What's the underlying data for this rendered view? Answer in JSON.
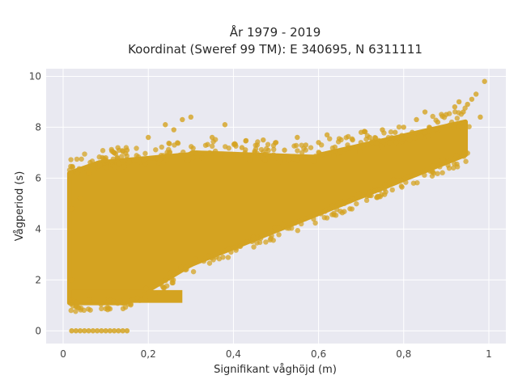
{
  "chart_data": {
    "type": "scatter",
    "title_line1": "År 1979 - 2019",
    "title_line2": "Koordinat (Sweref 99 TM): E 340695, N 6311111",
    "xlabel": "Signifikant våghöjd (m)",
    "ylabel": "Vågperiod (s)",
    "xlim": [
      -0.04,
      1.04
    ],
    "ylim": [
      -0.5,
      10.3
    ],
    "xticks": [
      0,
      0.2,
      0.4,
      0.6,
      0.8,
      1
    ],
    "xtick_labels": [
      "0",
      "0,2",
      "0,4",
      "0,6",
      "0,8",
      "1"
    ],
    "yticks": [
      0,
      2,
      4,
      6,
      8,
      10
    ],
    "ytick_labels": [
      "0",
      "2",
      "4",
      "6",
      "8",
      "10"
    ],
    "grid": true,
    "marker_color": "#d4a321",
    "plot_background": "#e9e9f1",
    "points": [
      [
        0.99,
        9.8
      ],
      [
        0.97,
        9.3
      ],
      [
        0.96,
        9.1
      ],
      [
        0.95,
        8.9
      ],
      [
        0.98,
        8.4
      ],
      [
        0.93,
        9.0
      ],
      [
        0.94,
        8.6
      ],
      [
        0.92,
        8.8
      ],
      [
        0.9,
        8.5
      ],
      [
        0.88,
        8.2
      ],
      [
        0.85,
        8.6
      ],
      [
        0.86,
        8.0
      ],
      [
        0.83,
        8.3
      ],
      [
        0.8,
        8.0
      ],
      [
        0.82,
        7.8
      ],
      [
        0.78,
        7.8
      ],
      [
        0.75,
        7.9
      ],
      [
        0.72,
        7.6
      ],
      [
        0.7,
        7.8
      ],
      [
        0.68,
        7.5
      ],
      [
        0.62,
        7.7
      ],
      [
        0.6,
        7.4
      ],
      [
        0.57,
        7.3
      ],
      [
        0.55,
        7.6
      ],
      [
        0.52,
        7.1
      ],
      [
        0.5,
        7.4
      ],
      [
        0.47,
        7.5
      ],
      [
        0.45,
        7.0
      ],
      [
        0.42,
        7.2
      ],
      [
        0.4,
        6.9
      ],
      [
        0.38,
        8.1
      ],
      [
        0.35,
        7.6
      ],
      [
        0.3,
        8.4
      ],
      [
        0.28,
        8.3
      ],
      [
        0.26,
        7.9
      ],
      [
        0.24,
        8.1
      ],
      [
        0.2,
        7.6
      ],
      [
        0.15,
        7.1
      ],
      [
        0.12,
        7.0
      ],
      [
        0.1,
        6.8
      ],
      [
        0.06,
        6.2
      ],
      [
        0.04,
        5.2
      ],
      [
        0.02,
        4.8
      ],
      [
        0.02,
        2.0
      ],
      [
        0.02,
        1.2
      ]
    ],
    "zero_period_points": [
      [
        0.02,
        0
      ],
      [
        0.03,
        0
      ],
      [
        0.04,
        0
      ],
      [
        0.05,
        0
      ],
      [
        0.06,
        0
      ],
      [
        0.07,
        0
      ],
      [
        0.08,
        0
      ],
      [
        0.09,
        0
      ],
      [
        0.1,
        0
      ],
      [
        0.11,
        0
      ],
      [
        0.12,
        0
      ],
      [
        0.13,
        0
      ],
      [
        0.14,
        0
      ],
      [
        0.15,
        0
      ]
    ]
  }
}
